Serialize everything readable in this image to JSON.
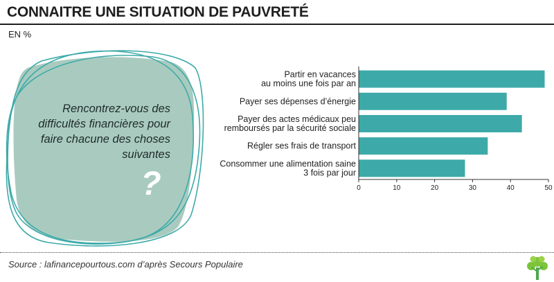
{
  "title": "CONNAITRE UNE SITUATION DE PAUVRETÉ",
  "unit": "EN %",
  "question": "Rencontrez-vous des difficultés financières pour faire chacune des choses suivantes",
  "question_mark": "?",
  "source": "Source : lafinancepourtous.com d’après Secours Populaire",
  "colors": {
    "bar": "#3daaa9",
    "shape": "#a9cbbf",
    "outline": "#3daaa9"
  },
  "chart_data": {
    "type": "bar",
    "orientation": "horizontal",
    "categories": [
      [
        "Partir en vacances",
        "au moins une fois par an"
      ],
      [
        "Payer ses dépenses d’énergie"
      ],
      [
        "Payer des actes médicaux peu",
        "remboursés par la sécurité sociale"
      ],
      [
        "Régler ses frais de transport"
      ],
      [
        "Consommer une alimentation saine",
        "3 fois par jour"
      ]
    ],
    "values": [
      49,
      39,
      43,
      34,
      28
    ],
    "xlim": [
      0,
      50
    ],
    "ticks": [
      "0",
      "10",
      "20",
      "30",
      "40",
      "50"
    ]
  }
}
